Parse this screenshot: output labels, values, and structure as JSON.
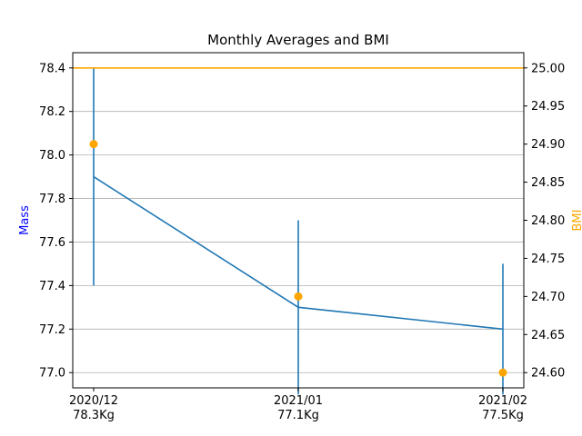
{
  "chart_data": {
    "type": "line",
    "title": "Monthly Averages and BMI",
    "categories": [
      "2020/12",
      "2021/01",
      "2021/02"
    ],
    "category_sublabels": [
      "78.3Kg",
      "77.1Kg",
      "77.5Kg"
    ],
    "ylabel": "Mass",
    "ylabel_right": "BMI",
    "ylim": [
      76.93,
      78.47
    ],
    "ylim_right": [
      24.58,
      25.02
    ],
    "yticks": [
      77.0,
      77.2,
      77.4,
      77.6,
      77.8,
      78.0,
      78.2,
      78.4
    ],
    "yticks_right": [
      24.6,
      24.65,
      24.7,
      24.75,
      24.8,
      24.85,
      24.9,
      24.95,
      25.0
    ],
    "grid": true,
    "series": [
      {
        "axis": "left",
        "kind": "line-errorbar",
        "color": "#1f77b4",
        "values": [
          77.9,
          77.3,
          77.2
        ],
        "error_low": [
          77.4,
          76.9,
          76.9
        ],
        "error_high": [
          78.4,
          77.7,
          77.5
        ]
      },
      {
        "axis": "right",
        "kind": "points",
        "color": "#ffa500",
        "values": [
          24.9,
          24.7,
          24.6
        ]
      },
      {
        "axis": "right",
        "kind": "hline",
        "color": "#ffa500",
        "value": 25.0
      }
    ],
    "colors": {
      "ylabel": "#0000ff",
      "ylabel_right": "#ffa500",
      "grid": "#b0b0b0",
      "axis": "#000000"
    }
  }
}
